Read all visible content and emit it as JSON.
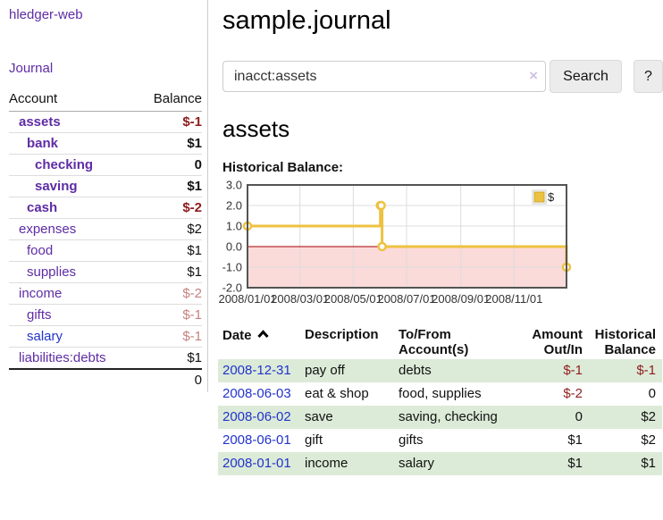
{
  "colors": {
    "accent_purple": "#5e2ca5",
    "link_blue": "#2233cc",
    "negative_strong": "#8f1c1c",
    "negative_muted": "#c4817e",
    "row_stripe_green": "#dcebd8",
    "series_gold": "#edc240"
  },
  "sidebar": {
    "app_title": "hledger-web",
    "journal_link": "Journal",
    "table": {
      "header_account": "Account",
      "header_balance": "Balance",
      "rows": [
        {
          "name": "assets",
          "balance": "$-1",
          "level": 1,
          "bold": true,
          "tone": "neg",
          "link": "purple"
        },
        {
          "name": "bank",
          "balance": "$1",
          "level": 2,
          "bold": true,
          "tone": "pos",
          "link": "purple"
        },
        {
          "name": "checking",
          "balance": "0",
          "level": 3,
          "bold": true,
          "tone": "pos",
          "link": "purple"
        },
        {
          "name": "saving",
          "balance": "$1",
          "level": 3,
          "bold": true,
          "tone": "pos",
          "link": "purple"
        },
        {
          "name": "cash",
          "balance": "$-2",
          "level": 2,
          "bold": true,
          "tone": "neg",
          "link": "purple"
        },
        {
          "name": "expenses",
          "balance": "$2",
          "level": 1,
          "bold": false,
          "tone": "pos",
          "link": "purple"
        },
        {
          "name": "food",
          "balance": "$1",
          "level": 2,
          "bold": false,
          "tone": "pos",
          "link": "purple"
        },
        {
          "name": "supplies",
          "balance": "$1",
          "level": 2,
          "bold": false,
          "tone": "pos",
          "link": "purple"
        },
        {
          "name": "income",
          "balance": "$-2",
          "level": 1,
          "bold": false,
          "tone": "negmuted",
          "link": "purple"
        },
        {
          "name": "gifts",
          "balance": "$-1",
          "level": 2,
          "bold": false,
          "tone": "negmuted",
          "link": "purple"
        },
        {
          "name": "salary",
          "balance": "$-1",
          "level": 2,
          "bold": false,
          "tone": "negmuted",
          "link": "blue"
        },
        {
          "name": "liabilities:debts",
          "balance": "$1",
          "level": 1,
          "bold": false,
          "tone": "pos",
          "link": "purple"
        }
      ],
      "total": "0"
    }
  },
  "main": {
    "title": "sample.journal",
    "search": {
      "value": "inacct:assets",
      "clear_icon": "×",
      "search_button": "Search",
      "help_button": "?"
    },
    "account_heading": "assets",
    "chart_heading": "Historical Balance:"
  },
  "chart_data": {
    "type": "line",
    "title": "Historical Balance",
    "steps": true,
    "series": [
      {
        "name": "$",
        "color": "#edc240",
        "points": [
          [
            "2008-01-01",
            1
          ],
          [
            "2008-06-01",
            2
          ],
          [
            "2008-06-02",
            2
          ],
          [
            "2008-06-03",
            0
          ],
          [
            "2008-12-31",
            -1
          ]
        ]
      }
    ],
    "xlim": [
      "2008-01-01",
      "2008-12-31"
    ],
    "ylim": [
      -2,
      3
    ],
    "y_ticks": [
      3.0,
      2.0,
      1.0,
      0.0,
      -1.0,
      -2.0
    ],
    "y_tick_labels": [
      "3.0",
      "2.0",
      "1.0",
      "0.0",
      "-1.0",
      "-2.0"
    ],
    "x_ticks": [
      {
        "date": "2008-01-01",
        "label": "2008/01/01"
      },
      {
        "date": "2008-03-01",
        "label": "2008/03/01"
      },
      {
        "date": "2008-05-01",
        "label": "2008/05/01"
      },
      {
        "date": "2008-07-01",
        "label": "2008/07/01"
      },
      {
        "date": "2008-09-01",
        "label": "2008/09/01"
      },
      {
        "date": "2008-11-01",
        "label": "2008/11/01"
      }
    ],
    "grid": true,
    "legend": {
      "label": "$",
      "position": "top-right"
    },
    "negative_region_color": "#fbdada",
    "zero_line_color": "#a40000",
    "grid_color": "#dcdcdc",
    "border_color": "#545454"
  },
  "register": {
    "headers": {
      "date": "Date",
      "sort": "ascending",
      "description": "Description",
      "accounts": "To/From Account(s)",
      "amount": "Amount Out/In",
      "balance": "Historical Balance"
    },
    "rows": [
      {
        "date": "2008-12-31",
        "description": "pay off",
        "accounts": "debts",
        "amount": "$-1",
        "balance": "$-1",
        "amount_tone": "neg",
        "balance_tone": "neg",
        "shaded": true
      },
      {
        "date": "2008-06-03",
        "description": "eat & shop",
        "accounts": "food, supplies",
        "amount": "$-2",
        "balance": "0",
        "amount_tone": "neg",
        "balance_tone": "pos",
        "shaded": false
      },
      {
        "date": "2008-06-02",
        "description": "save",
        "accounts": "saving, checking",
        "amount": "0",
        "balance": "$2",
        "amount_tone": "pos",
        "balance_tone": "pos",
        "shaded": true
      },
      {
        "date": "2008-06-01",
        "description": "gift",
        "accounts": "gifts",
        "amount": "$1",
        "balance": "$2",
        "amount_tone": "pos",
        "balance_tone": "pos",
        "shaded": false
      },
      {
        "date": "2008-01-01",
        "description": "income",
        "accounts": "salary",
        "amount": "$1",
        "balance": "$1",
        "amount_tone": "pos",
        "balance_tone": "pos",
        "shaded": true
      }
    ]
  }
}
